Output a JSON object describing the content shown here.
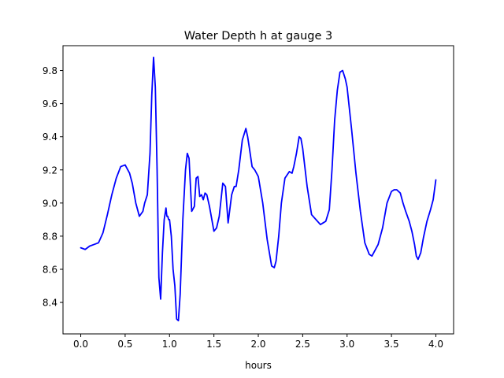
{
  "chart_data": {
    "type": "line",
    "title": "Water Depth h at gauge 3",
    "xlabel": "hours",
    "ylabel": "",
    "xlim": [
      -0.2,
      4.2
    ],
    "ylim": [
      8.21,
      9.95
    ],
    "grid": false,
    "x_ticks": [
      0.0,
      0.5,
      1.0,
      1.5,
      2.0,
      2.5,
      3.0,
      3.5,
      4.0
    ],
    "x_tick_labels": [
      "0.0",
      "0.5",
      "1.0",
      "1.5",
      "2.0",
      "2.5",
      "3.0",
      "3.5",
      "4.0"
    ],
    "y_ticks": [
      8.4,
      8.6,
      8.8,
      9.0,
      9.2,
      9.4,
      9.6,
      9.8
    ],
    "y_tick_labels": [
      "8.4",
      "8.6",
      "8.8",
      "9.0",
      "9.2",
      "9.4",
      "9.6",
      "9.8"
    ],
    "series": [
      {
        "color": "#0000ff",
        "x": [
          0.0,
          0.05,
          0.1,
          0.15,
          0.2,
          0.25,
          0.3,
          0.35,
          0.4,
          0.45,
          0.5,
          0.55,
          0.58,
          0.62,
          0.66,
          0.7,
          0.72,
          0.75,
          0.78,
          0.8,
          0.82,
          0.84,
          0.86,
          0.88,
          0.9,
          0.92,
          0.94,
          0.96,
          0.97,
          0.98,
          0.99,
          1.0,
          1.02,
          1.04,
          1.06,
          1.08,
          1.1,
          1.12,
          1.15,
          1.18,
          1.2,
          1.22,
          1.25,
          1.28,
          1.3,
          1.32,
          1.34,
          1.36,
          1.38,
          1.4,
          1.42,
          1.45,
          1.5,
          1.53,
          1.56,
          1.6,
          1.63,
          1.66,
          1.7,
          1.73,
          1.75,
          1.78,
          1.82,
          1.86,
          1.88,
          1.9,
          1.93,
          1.96,
          2.0,
          2.05,
          2.1,
          2.15,
          2.18,
          2.2,
          2.23,
          2.26,
          2.3,
          2.35,
          2.38,
          2.4,
          2.43,
          2.46,
          2.48,
          2.5,
          2.55,
          2.6,
          2.65,
          2.7,
          2.73,
          2.76,
          2.8,
          2.83,
          2.86,
          2.89,
          2.92,
          2.95,
          2.98,
          3.0,
          3.05,
          3.1,
          3.15,
          3.2,
          3.25,
          3.28,
          3.3,
          3.35,
          3.4,
          3.45,
          3.5,
          3.53,
          3.56,
          3.6,
          3.63,
          3.66,
          3.7,
          3.73,
          3.76,
          3.78,
          3.8,
          3.83,
          3.86,
          3.9,
          3.94,
          3.97,
          4.0
        ],
        "y": [
          8.73,
          8.72,
          8.74,
          8.75,
          8.76,
          8.82,
          8.93,
          9.05,
          9.15,
          9.22,
          9.23,
          9.18,
          9.12,
          9.0,
          8.92,
          8.95,
          9.0,
          9.05,
          9.3,
          9.65,
          9.88,
          9.7,
          9.2,
          8.55,
          8.42,
          8.7,
          8.9,
          8.97,
          8.92,
          8.92,
          8.9,
          8.9,
          8.8,
          8.6,
          8.5,
          8.3,
          8.29,
          8.45,
          8.9,
          9.2,
          9.3,
          9.27,
          8.95,
          8.98,
          9.15,
          9.16,
          9.04,
          9.05,
          9.02,
          9.06,
          9.05,
          8.98,
          8.83,
          8.85,
          8.92,
          9.12,
          9.1,
          8.88,
          9.05,
          9.1,
          9.1,
          9.2,
          9.38,
          9.45,
          9.4,
          9.33,
          9.22,
          9.2,
          9.16,
          9.0,
          8.78,
          8.62,
          8.61,
          8.65,
          8.8,
          9.0,
          9.15,
          9.19,
          9.18,
          9.22,
          9.3,
          9.4,
          9.39,
          9.33,
          9.1,
          8.93,
          8.9,
          8.87,
          8.88,
          8.89,
          8.96,
          9.2,
          9.5,
          9.68,
          9.79,
          9.8,
          9.75,
          9.7,
          9.45,
          9.18,
          8.95,
          8.76,
          8.69,
          8.68,
          8.7,
          8.75,
          8.85,
          9.0,
          9.07,
          9.08,
          9.08,
          9.06,
          9.0,
          8.95,
          8.89,
          8.83,
          8.75,
          8.68,
          8.66,
          8.7,
          8.79,
          8.89,
          8.96,
          9.02,
          9.14
        ]
      }
    ]
  }
}
